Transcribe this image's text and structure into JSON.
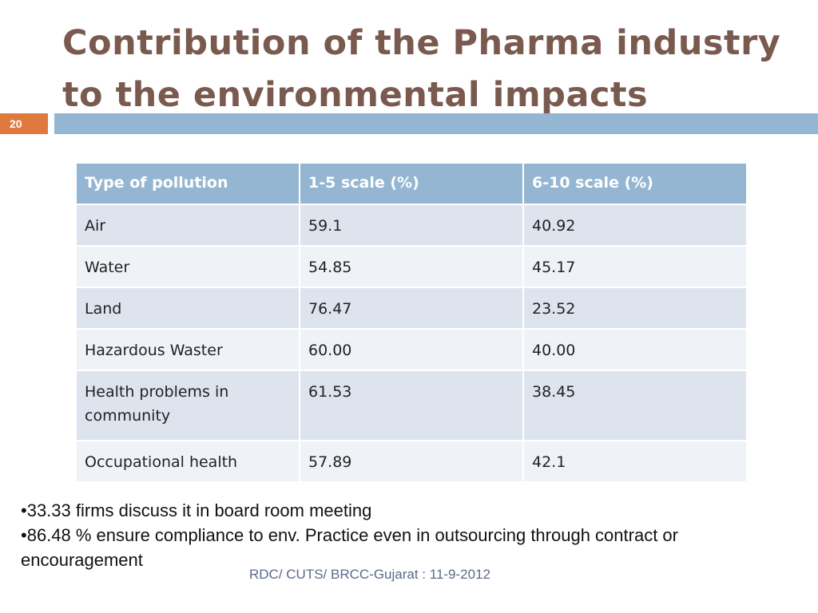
{
  "slide": {
    "title_line1": "Contribution of the Pharma industry",
    "title_line2": "to the environmental impacts",
    "number": "20"
  },
  "table": {
    "headers": [
      "Type of pollution",
      "1-5 scale (%)",
      "6-10 scale (%)"
    ],
    "rows": [
      [
        "Air",
        "59.1",
        "40.92"
      ],
      [
        "Water",
        "54.85",
        "45.17"
      ],
      [
        "Land",
        "76.47",
        "23.52"
      ],
      [
        "Hazardous Waster",
        "60.00",
        "40.00"
      ],
      [
        "Health problems in community",
        "61.53",
        "38.45"
      ],
      [
        "Occupational health",
        "57.89",
        "42.1"
      ]
    ]
  },
  "notes": [
    "•33.33 firms discuss it in board room meeting",
    "•86.48 % ensure compliance to env. Practice even in outsourcing through contract or encouragement"
  ],
  "footer": "RDC/ CUTS/ BRCC-Gujarat : 11-9-2012",
  "colors": {
    "title": "#7a5a4f",
    "accent_bar": "#94b6d2",
    "slide_number_bg": "#e0793d",
    "row_dark": "#dde4ed",
    "row_light": "#eff3f7"
  }
}
